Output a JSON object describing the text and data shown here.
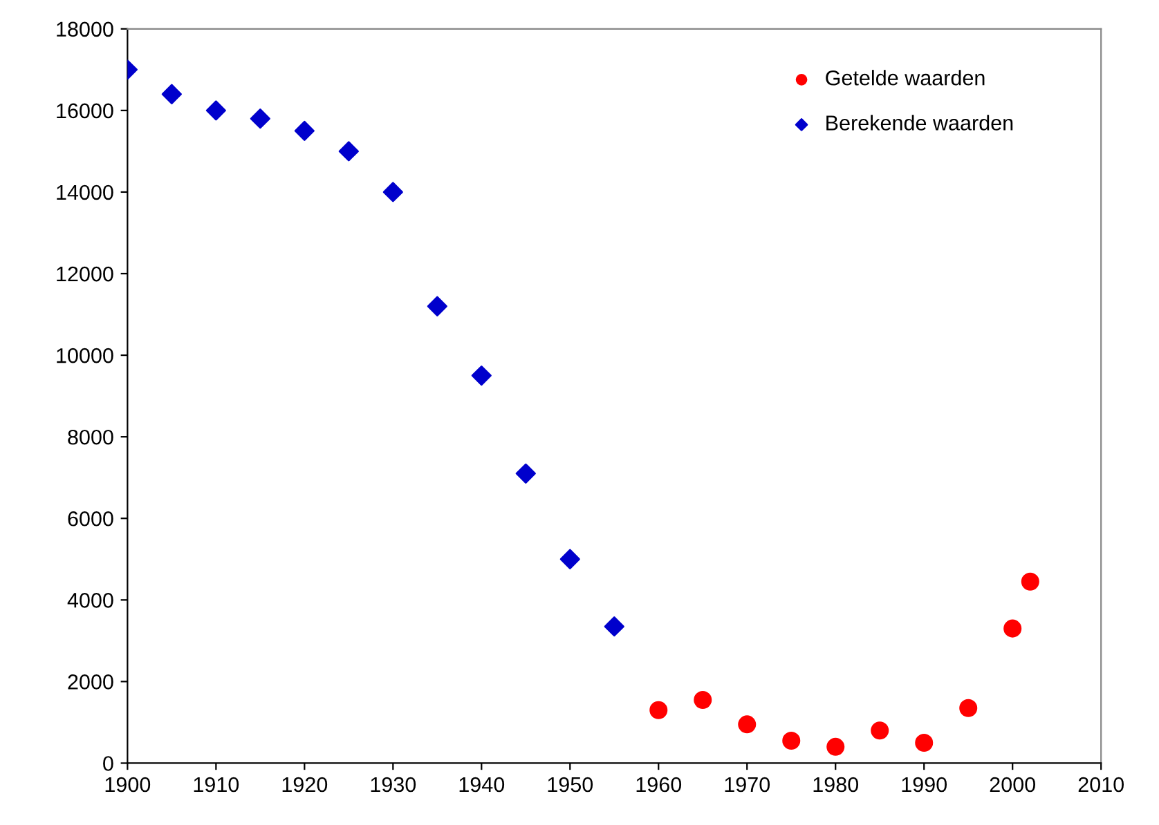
{
  "chart_data": {
    "type": "scatter",
    "xlim": [
      1900,
      2010
    ],
    "xticks": [
      1900,
      1910,
      1920,
      1930,
      1940,
      1950,
      1960,
      1970,
      1980,
      1990,
      2000,
      2010
    ],
    "ylim": [
      0,
      18000
    ],
    "yticks": [
      0,
      2000,
      4000,
      6000,
      8000,
      10000,
      12000,
      14000,
      16000,
      18000
    ],
    "grid": false,
    "legend": "top right",
    "series": [
      {
        "name": "Getelde waarden",
        "color": "#ff0000",
        "marker": "circle",
        "x": [
          1960,
          1965,
          1970,
          1975,
          1980,
          1985,
          1990,
          1995,
          2000,
          2002
        ],
        "values": [
          1300,
          1550,
          950,
          550,
          400,
          800,
          500,
          1350,
          3300,
          4450
        ]
      },
      {
        "name": "Berekende waarden",
        "color": "#0000cc",
        "marker": "diamond",
        "x": [
          1900,
          1905,
          1910,
          1915,
          1920,
          1925,
          1930,
          1935,
          1940,
          1945,
          1950,
          1955
        ],
        "values": [
          17000,
          16400,
          16000,
          15800,
          15500,
          15000,
          14000,
          11200,
          9500,
          7100,
          5000,
          3350
        ]
      }
    ]
  }
}
